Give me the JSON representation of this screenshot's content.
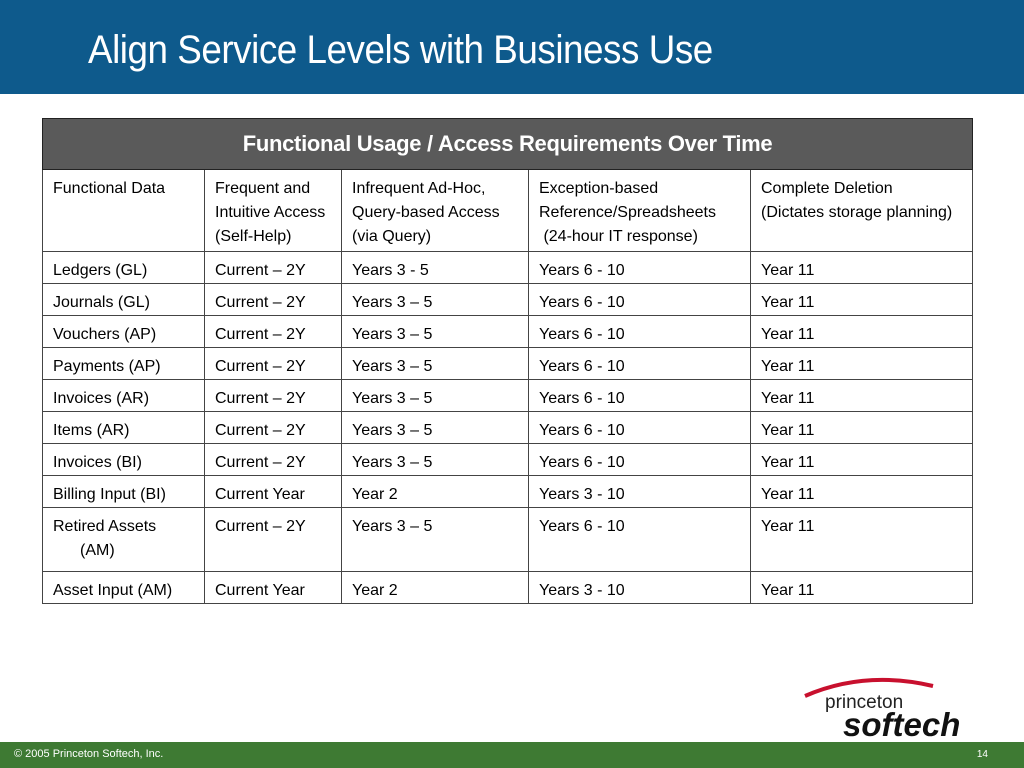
{
  "slide": {
    "title": "Align Service Levels with Business Use",
    "footer": "© 2005 Princeton Softech, Inc.",
    "page_number": "14"
  },
  "table": {
    "title": "Functional Usage / Access Requirements Over Time",
    "headers": [
      [
        "Functional Data"
      ],
      [
        "Frequent and",
        "Intuitive Access",
        "(Self-Help)"
      ],
      [
        "Infrequent Ad-Hoc,",
        "Query-based Access",
        "(via Query)"
      ],
      [
        "Exception-based",
        "Reference/Spreadsheets",
        " (24-hour IT response)"
      ],
      [
        "Complete Deletion",
        "(Dictates storage planning)"
      ]
    ],
    "rows": [
      [
        "Ledgers (GL)",
        "Current – 2Y",
        "Years 3 - 5",
        "Years 6 - 10",
        "Year 11"
      ],
      [
        "Journals (GL)",
        "Current – 2Y",
        "Years 3 – 5",
        "Years 6 - 10",
        "Year 11"
      ],
      [
        "Vouchers (AP)",
        "Current – 2Y",
        "Years 3 – 5",
        "Years 6 - 10",
        "Year 11"
      ],
      [
        "Payments (AP)",
        "Current – 2Y",
        "Years 3 – 5",
        "Years 6 - 10",
        "Year 11"
      ],
      [
        "Invoices (AR)",
        "Current – 2Y",
        "Years 3 – 5",
        "Years 6 - 10",
        "Year 11"
      ],
      [
        "Items (AR)",
        "Current – 2Y",
        "Years 3 – 5",
        "Years 6 - 10",
        "Year 11"
      ],
      [
        "Invoices (BI)",
        "Current – 2Y",
        "Years 3 – 5",
        "Years 6 - 10",
        "Year 11"
      ],
      [
        "Billing Input (BI)",
        "Current Year",
        "Year 2",
        "Years 3 - 10",
        "Year 11"
      ],
      [
        "Retired Assets|(AM)",
        "Current – 2Y",
        "Years 3 – 5",
        "Years 6 - 10",
        "Year 11"
      ],
      [
        "Asset Input (AM)",
        "Current Year",
        "Year 2",
        "Years 3 - 10",
        "Year 11"
      ]
    ]
  },
  "logo": {
    "line1": "princeton",
    "line2": "softech"
  },
  "colors": {
    "title_bar": "#0e5a8c",
    "table_header": "#5a5a5a",
    "footer_bar": "#3e7a33",
    "logo_arc": "#c8102e"
  }
}
